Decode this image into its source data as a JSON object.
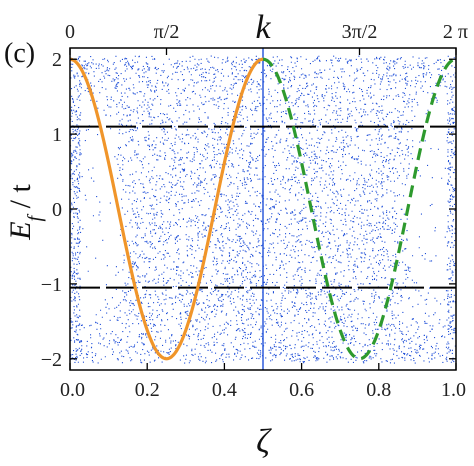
{
  "panel_label": "(c)",
  "chart_data": {
    "type": "scatter",
    "xlabel": "ζ",
    "ylabel": "E_f / t",
    "ylabel_parts": {
      "main": "E",
      "sub": "f",
      "rest": " / t"
    },
    "top_axis_label": "k",
    "xlim": [
      0.0,
      1.0
    ],
    "ylim": [
      -2.15,
      2.15
    ],
    "x_ticks": [
      0.0,
      0.2,
      0.4,
      0.6,
      0.8,
      1.0
    ],
    "x_tick_labels": [
      "0.0",
      "0.2",
      "0.4",
      "0.6",
      "0.8",
      "1.0"
    ],
    "y_ticks": [
      -2,
      -1,
      0,
      1,
      2
    ],
    "y_tick_labels": [
      "−2",
      "−1",
      "0",
      "1",
      "2"
    ],
    "top_ticks": [
      0.0,
      0.25,
      0.75,
      1.0
    ],
    "top_tick_labels": [
      "0",
      "π/2",
      "3π/2",
      "2 π"
    ],
    "grid": false,
    "series": [
      {
        "kind": "scatter",
        "color": "#1f4fd8",
        "description": "dense blue spectrum points, bands near edges"
      },
      {
        "kind": "line",
        "color": "#f0952a",
        "style": "solid",
        "function": "2cos(4πζ)",
        "domain": [
          0.0,
          0.5
        ]
      },
      {
        "kind": "line",
        "color": "#2e9a2e",
        "style": "dashed",
        "function": "2cos(4πζ)",
        "domain": [
          0.5,
          1.0
        ]
      }
    ],
    "hlines": [
      {
        "y": 1.1,
        "color": "#000000",
        "style": "dashed"
      },
      {
        "y": -1.05,
        "color": "#000000",
        "style": "dashed"
      }
    ],
    "vlines": [
      {
        "x": 0.5,
        "color": "#1f4fd8",
        "style": "solid"
      }
    ]
  }
}
